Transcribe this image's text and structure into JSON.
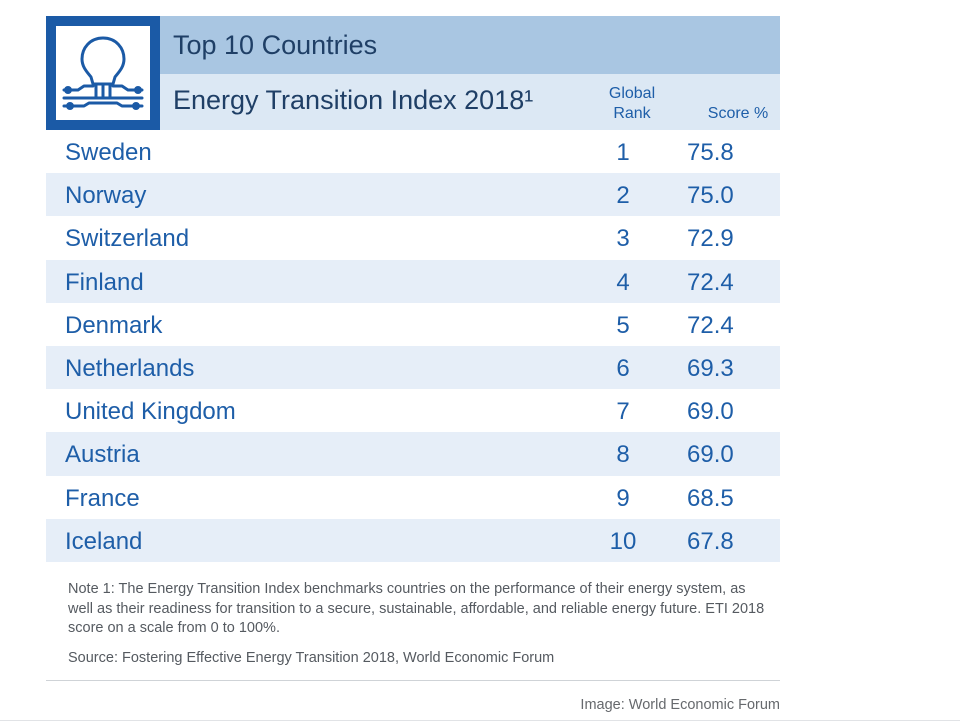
{
  "header": {
    "title": "Top 10 Countries",
    "subtitle": "Energy Transition Index 2018¹",
    "rank_head_line1": "Global",
    "rank_head_line2": "Rank",
    "score_head": "Score %"
  },
  "icon": "lightbulb-circuit-icon",
  "colors": {
    "accent": "#1b5aa6",
    "title_bar": "#a9c6e2",
    "subtitle_bar": "#dce8f4",
    "row_shade": "#e6eef8",
    "text": "#1e5ea8"
  },
  "chart_data": {
    "type": "table",
    "title": "Top 10 Countries",
    "subtitle": "Energy Transition Index 2018¹",
    "columns": [
      "Global Rank",
      "Score %"
    ],
    "rows": [
      {
        "country": "Sweden",
        "rank": "1",
        "score": "75.8"
      },
      {
        "country": "Norway",
        "rank": "2",
        "score": "75.0"
      },
      {
        "country": "Switzerland",
        "rank": "3",
        "score": "72.9"
      },
      {
        "country": "Finland",
        "rank": "4",
        "score": "72.4"
      },
      {
        "country": "Denmark",
        "rank": "5",
        "score": "72.4"
      },
      {
        "country": "Netherlands",
        "rank": "6",
        "score": "69.3"
      },
      {
        "country": "United Kingdom",
        "rank": "7",
        "score": "69.0"
      },
      {
        "country": "Austria",
        "rank": "8",
        "score": "69.0"
      },
      {
        "country": "France",
        "rank": "9",
        "score": "68.5"
      },
      {
        "country": "Iceland",
        "rank": "10",
        "score": "67.8"
      }
    ]
  },
  "footer": {
    "note": "Note 1: The Energy Transition Index benchmarks countries on the performance of their energy system, as well as their readiness for transition to a secure, sustainable, affordable, and reliable energy future. ETI 2018 score on a scale from 0 to 100%.",
    "source": "Source: Fostering Effective Energy Transition 2018, World Economic Forum",
    "credit": "Image: World Economic Forum"
  }
}
